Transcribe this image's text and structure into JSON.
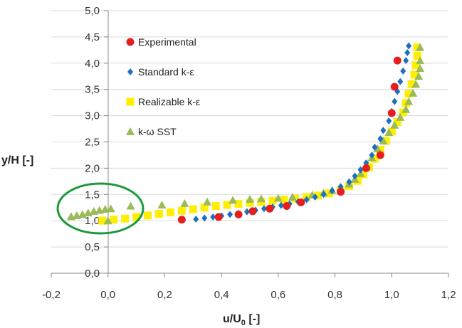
{
  "chart_data": {
    "type": "scatter",
    "xlabel": "u/U₀ [-]",
    "ylabel": "y/H [-]",
    "xlim": [
      -0.2,
      1.2
    ],
    "ylim": [
      0.0,
      5.0
    ],
    "xticks": [
      "-0,2",
      "0,0",
      "0,2",
      "0,4",
      "0,6",
      "0,8",
      "1,0",
      "1,2"
    ],
    "yticks": [
      "0,0",
      "0,5",
      "1,0",
      "1,5",
      "2,0",
      "2,5",
      "3,0",
      "3,5",
      "4,0",
      "4,5",
      "5,0"
    ],
    "grid": "horizontal",
    "legend_position": "top-center",
    "annotation": {
      "shape": "ellipse",
      "color": "#1a9a3c",
      "around": "near-wall region x -0.15 to 0.1, y 1.0 to 1.3"
    },
    "series": [
      {
        "name": "Experimental",
        "marker": "circle",
        "color": "#e61e1e",
        "points": [
          [
            0.26,
            1.02
          ],
          [
            0.39,
            1.07
          ],
          [
            0.46,
            1.12
          ],
          [
            0.51,
            1.18
          ],
          [
            0.57,
            1.23
          ],
          [
            0.63,
            1.28
          ],
          [
            0.68,
            1.35
          ],
          [
            0.82,
            1.55
          ],
          [
            0.91,
            2.0
          ],
          [
            0.96,
            2.25
          ],
          [
            1.0,
            3.05
          ],
          [
            1.01,
            3.55
          ],
          [
            1.02,
            4.05
          ]
        ]
      },
      {
        "name": "Standard k-ε",
        "marker": "diamond",
        "color": "#1f6fc0",
        "points": [
          [
            0.31,
            1.03
          ],
          [
            0.34,
            1.05
          ],
          [
            0.37,
            1.07
          ],
          [
            0.4,
            1.09
          ],
          [
            0.43,
            1.12
          ],
          [
            0.46,
            1.14
          ],
          [
            0.49,
            1.17
          ],
          [
            0.52,
            1.2
          ],
          [
            0.55,
            1.23
          ],
          [
            0.58,
            1.26
          ],
          [
            0.61,
            1.29
          ],
          [
            0.64,
            1.32
          ],
          [
            0.67,
            1.36
          ],
          [
            0.7,
            1.4
          ],
          [
            0.73,
            1.45
          ],
          [
            0.76,
            1.5
          ],
          [
            0.79,
            1.57
          ],
          [
            0.82,
            1.65
          ],
          [
            0.85,
            1.74
          ],
          [
            0.87,
            1.85
          ],
          [
            0.89,
            1.97
          ],
          [
            0.91,
            2.1
          ],
          [
            0.93,
            2.25
          ],
          [
            0.94,
            2.4
          ],
          [
            0.96,
            2.56
          ],
          [
            0.97,
            2.72
          ],
          [
            0.99,
            2.9
          ],
          [
            1.0,
            3.08
          ],
          [
            1.01,
            3.27
          ],
          [
            1.02,
            3.46
          ],
          [
            1.03,
            3.65
          ],
          [
            1.04,
            3.85
          ],
          [
            1.05,
            4.05
          ],
          [
            1.055,
            4.2
          ],
          [
            1.06,
            4.33
          ]
        ]
      },
      {
        "name": "Realizable k-ε",
        "marker": "square",
        "color": "#ffee00",
        "points": [
          [
            -0.02,
            1.0
          ],
          [
            0.02,
            1.02
          ],
          [
            0.06,
            1.04
          ],
          [
            0.1,
            1.07
          ],
          [
            0.14,
            1.1
          ],
          [
            0.18,
            1.13
          ],
          [
            0.22,
            1.16
          ],
          [
            0.26,
            1.19
          ],
          [
            0.3,
            1.22
          ],
          [
            0.34,
            1.25
          ],
          [
            0.38,
            1.28
          ],
          [
            0.42,
            1.3
          ],
          [
            0.46,
            1.32
          ],
          [
            0.5,
            1.34
          ],
          [
            0.54,
            1.36
          ],
          [
            0.58,
            1.38
          ],
          [
            0.62,
            1.4
          ],
          [
            0.66,
            1.42
          ],
          [
            0.7,
            1.45
          ],
          [
            0.74,
            1.48
          ],
          [
            0.78,
            1.52
          ],
          [
            0.82,
            1.58
          ],
          [
            0.85,
            1.66
          ],
          [
            0.88,
            1.76
          ],
          [
            0.9,
            1.88
          ],
          [
            0.92,
            2.02
          ],
          [
            0.94,
            2.18
          ],
          [
            0.96,
            2.35
          ],
          [
            0.98,
            2.52
          ],
          [
            1.0,
            2.7
          ],
          [
            1.02,
            2.88
          ],
          [
            1.04,
            3.06
          ],
          [
            1.05,
            3.24
          ],
          [
            1.06,
            3.42
          ],
          [
            1.07,
            3.6
          ],
          [
            1.08,
            3.78
          ],
          [
            1.085,
            3.96
          ],
          [
            1.09,
            4.14
          ],
          [
            1.09,
            4.3
          ]
        ]
      },
      {
        "name": "k-ω SST",
        "marker": "triangle",
        "color": "#9bbb59",
        "points": [
          [
            -0.13,
            1.08
          ],
          [
            -0.11,
            1.1
          ],
          [
            -0.09,
            1.12
          ],
          [
            -0.07,
            1.15
          ],
          [
            -0.05,
            1.18
          ],
          [
            -0.03,
            1.2
          ],
          [
            -0.01,
            1.22
          ],
          [
            0.0,
            1.0
          ],
          [
            0.01,
            1.23
          ],
          [
            0.08,
            1.28
          ],
          [
            0.19,
            1.3
          ],
          [
            0.27,
            1.33
          ],
          [
            0.35,
            1.36
          ],
          [
            0.44,
            1.39
          ],
          [
            0.5,
            1.41
          ],
          [
            0.54,
            1.42
          ],
          [
            0.6,
            1.43
          ],
          [
            0.65,
            1.45
          ],
          [
            0.72,
            1.49
          ],
          [
            0.76,
            1.53
          ],
          [
            0.79,
            1.58
          ],
          [
            0.82,
            1.63
          ],
          [
            0.85,
            1.7
          ],
          [
            0.87,
            1.79
          ],
          [
            0.89,
            1.9
          ],
          [
            0.91,
            2.05
          ],
          [
            0.93,
            2.2
          ],
          [
            0.95,
            2.37
          ],
          [
            0.97,
            2.52
          ],
          [
            0.99,
            2.68
          ],
          [
            1.01,
            2.82
          ],
          [
            1.03,
            2.97
          ],
          [
            1.05,
            3.12
          ],
          [
            1.06,
            3.27
          ],
          [
            1.075,
            3.43
          ],
          [
            1.085,
            3.6
          ],
          [
            1.095,
            3.75
          ],
          [
            1.1,
            3.9
          ],
          [
            1.1,
            4.05
          ],
          [
            1.1,
            4.3
          ]
        ]
      }
    ]
  }
}
